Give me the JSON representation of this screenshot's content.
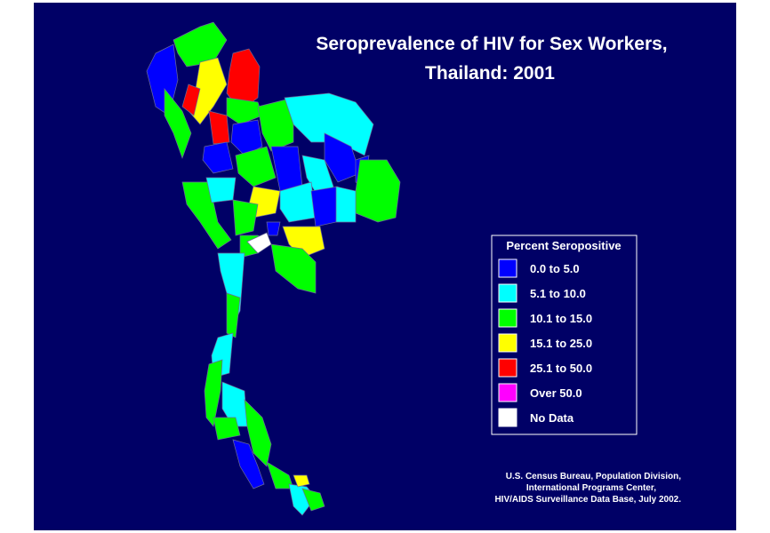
{
  "title": [
    "Seroprevalence of HIV for Sex Workers,",
    "Thailand:  2001"
  ],
  "legend": {
    "title": "Percent Seropositive",
    "items": [
      {
        "label": "0.0 to 5.0",
        "color": "#0000ff"
      },
      {
        "label": "5.1 to 10.0",
        "color": "#00ffff"
      },
      {
        "label": "10.1 to 15.0",
        "color": "#00ff00"
      },
      {
        "label": "15.1 to 25.0",
        "color": "#ffff00"
      },
      {
        "label": "25.1 to 50.0",
        "color": "#ff0000"
      },
      {
        "label": "Over 50.0",
        "color": "#ff00ff"
      },
      {
        "label": "No Data",
        "color": "#ffffff"
      }
    ]
  },
  "source": [
    "U.S. Census Bureau, Population Division,",
    "International Programs Center,",
    "HIV/AIDS Surveillance Data Base, July 2002."
  ]
}
